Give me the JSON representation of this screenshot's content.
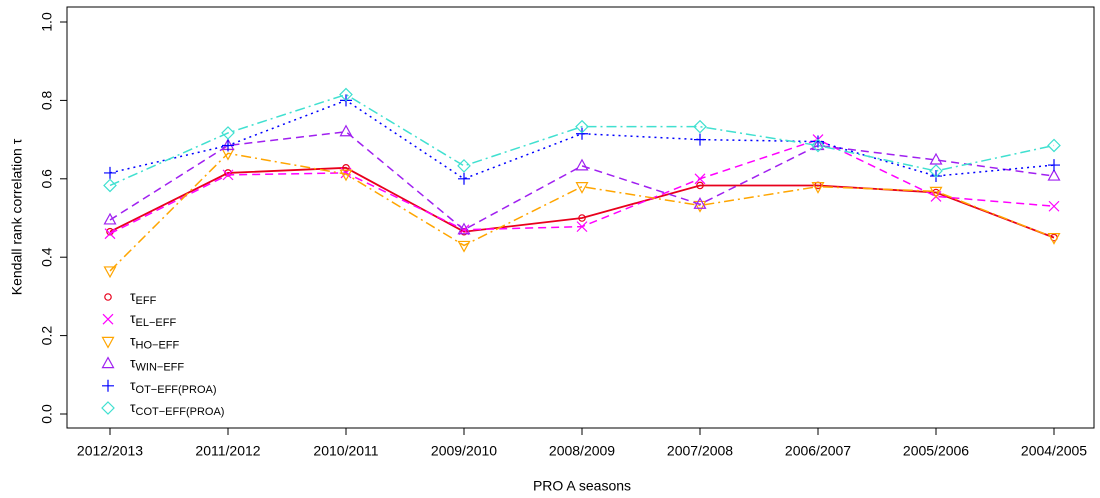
{
  "chart_data": {
    "type": "line",
    "xlabel": "PRO A seasons",
    "ylabel": "Kendall rank correlation τ",
    "categories": [
      "2012/2013",
      "2011/2012",
      "2010/2011",
      "2009/2010",
      "2008/2009",
      "2007/2008",
      "2006/2007",
      "2005/2006",
      "2004/2005"
    ],
    "ylim": [
      0,
      1
    ],
    "yticks": [
      {
        "value": 0,
        "label": "0.0"
      },
      0.2,
      0.4,
      0.6,
      0.8,
      {
        "value": 1,
        "label": "1.0"
      }
    ],
    "legend": "bottom-left",
    "series": [
      {
        "name": "τEFF",
        "color": "#e8001c",
        "marker": "circle",
        "dash": "solid",
        "values": [
          0.465,
          0.615,
          0.628,
          0.465,
          0.5,
          0.583,
          0.583,
          0.565,
          0.45
        ]
      },
      {
        "name": "τEL−EFF",
        "color": "#ff00ff",
        "marker": "x",
        "dash": "dashed",
        "values": [
          0.46,
          0.61,
          0.615,
          0.47,
          0.478,
          0.6,
          0.7,
          0.555,
          0.53
        ]
      },
      {
        "name": "τHO−EFF",
        "color": "#ffa500",
        "marker": "triangle-down",
        "dash": "dashdot",
        "values": [
          0.365,
          0.665,
          0.612,
          0.43,
          0.58,
          0.532,
          0.58,
          0.568,
          0.45
        ]
      },
      {
        "name": "τWIN−EFF",
        "color": "#a020f0",
        "marker": "triangle-up",
        "dash": "dashed",
        "values": [
          0.495,
          0.685,
          0.72,
          0.47,
          0.633,
          0.535,
          0.685,
          0.648,
          0.607
        ]
      },
      {
        "name": "τOT−EFF(PROA)",
        "color": "#0000ff",
        "marker": "plus",
        "dash": "dotted",
        "values": [
          0.615,
          0.685,
          0.8,
          0.6,
          0.715,
          0.7,
          0.695,
          0.607,
          0.635
        ]
      },
      {
        "name": "τCOT−EFF(PROA)",
        "color": "#40e0d0",
        "marker": "diamond",
        "dash": "dashdot",
        "values": [
          0.583,
          0.717,
          0.815,
          0.633,
          0.733,
          0.733,
          0.685,
          0.62,
          0.685
        ]
      }
    ]
  }
}
